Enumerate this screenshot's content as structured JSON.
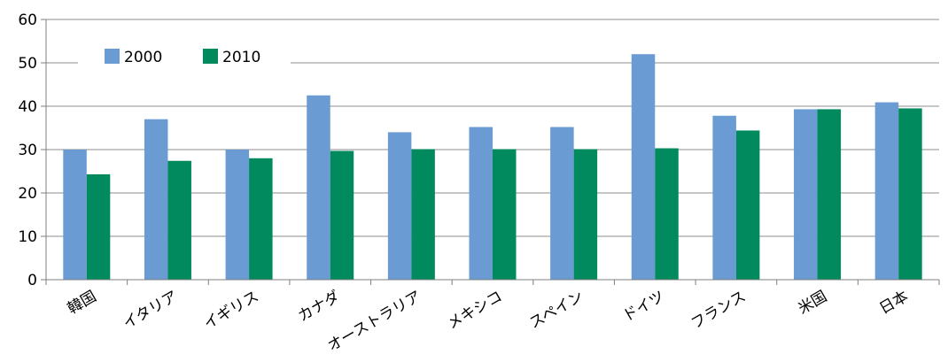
{
  "chart_data": {
    "type": "bar",
    "title": "",
    "xlabel": "",
    "ylabel": "",
    "ylim": [
      0,
      60
    ],
    "yticks": [
      0,
      10,
      20,
      30,
      40,
      50,
      60
    ],
    "grid": true,
    "legend_position": "top-left",
    "categories": [
      "韓国",
      "イタリア",
      "イギリス",
      "カナダ",
      "オーストラリア",
      "メキシコ",
      "スペイン",
      "ドイツ",
      "フランス",
      "米国",
      "日本"
    ],
    "series": [
      {
        "name": "2000",
        "color": "#6a9bd3",
        "values": [
          30.0,
          37.0,
          30.0,
          42.5,
          34.0,
          35.2,
          35.2,
          52.0,
          37.8,
          39.3,
          40.9
        ]
      },
      {
        "name": "2010",
        "color": "#008a5e",
        "values": [
          24.3,
          27.4,
          28.0,
          29.7,
          30.1,
          30.1,
          30.1,
          30.3,
          34.4,
          39.3,
          39.5
        ]
      }
    ]
  }
}
